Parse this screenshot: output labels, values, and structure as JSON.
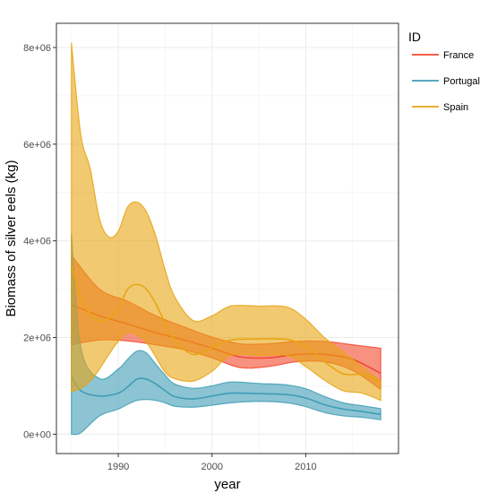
{
  "chart_data": {
    "type": "area",
    "xlabel": "year",
    "ylabel": "Biomass of silver eels (kg)",
    "xlim": [
      1983.4,
      2019.9
    ],
    "ylim": [
      -400000,
      8500000
    ],
    "x_ticks": [
      1990,
      2000,
      2010
    ],
    "x_tick_labels": [
      "1990",
      "2000",
      "2010"
    ],
    "y_ticks": [
      0,
      2000000,
      4000000,
      6000000,
      8000000
    ],
    "y_tick_labels": [
      "0e+00",
      "2e+06",
      "4e+06",
      "6e+06",
      "8e+06"
    ],
    "grid": true,
    "legend": {
      "title": "ID",
      "position": "right",
      "entries": [
        "France",
        "Portugal",
        "Spain"
      ]
    },
    "series": [
      {
        "name": "France",
        "color": "#F2492D",
        "x": [
          1985,
          1988,
          1991,
          1994,
          1997,
          2000,
          2003,
          2006,
          2009,
          2012,
          2015,
          2018
        ],
        "lower": [
          1850000,
          1950000,
          1930000,
          1850000,
          1750000,
          1580000,
          1380000,
          1400000,
          1500000,
          1500000,
          1320000,
          930000
        ],
        "median": [
          2680000,
          2450000,
          2280000,
          2100000,
          1950000,
          1780000,
          1600000,
          1580000,
          1650000,
          1650000,
          1550000,
          1260000
        ],
        "upper": [
          3700000,
          3000000,
          2750000,
          2450000,
          2220000,
          2010000,
          1870000,
          1870000,
          1920000,
          1920000,
          1850000,
          1780000
        ]
      },
      {
        "name": "Portugal",
        "color": "#3F9DB6",
        "x": [
          1985,
          1986,
          1988,
          1990,
          1991,
          1992,
          1993,
          1994,
          1995,
          1996,
          1998,
          2000,
          2002,
          2005,
          2008,
          2010,
          2012,
          2014,
          2016,
          2018
        ],
        "lower": [
          0,
          30000,
          380000,
          520000,
          620000,
          700000,
          720000,
          700000,
          650000,
          580000,
          560000,
          600000,
          650000,
          680000,
          650000,
          570000,
          450000,
          380000,
          350000,
          300000
        ],
        "median": [
          1200000,
          900000,
          790000,
          850000,
          980000,
          1140000,
          1140000,
          1040000,
          900000,
          780000,
          730000,
          790000,
          850000,
          840000,
          820000,
          750000,
          610000,
          520000,
          470000,
          410000
        ],
        "upper": [
          4150000,
          1800000,
          1150000,
          1350000,
          1550000,
          1720000,
          1680000,
          1450000,
          1220000,
          1040000,
          950000,
          1000000,
          1080000,
          1050000,
          1020000,
          940000,
          780000,
          650000,
          590000,
          530000
        ]
      },
      {
        "name": "Spain",
        "color": "#E8A512",
        "x": [
          1985,
          1986,
          1987,
          1988,
          1989,
          1990,
          1991,
          1992,
          1993,
          1994,
          1995,
          1996,
          1998,
          2000,
          2002,
          2005,
          2008,
          2010,
          2012,
          2014,
          2016,
          2018
        ],
        "lower": [
          880000,
          950000,
          1100000,
          1350000,
          1650000,
          1920000,
          2100000,
          2050000,
          1900000,
          1600000,
          1280000,
          1150000,
          1100000,
          1300000,
          1630000,
          1630000,
          1630000,
          1400000,
          1120000,
          900000,
          850000,
          700000
        ],
        "median": [
          3500000,
          2800000,
          2500000,
          2350000,
          2400000,
          2600000,
          3000000,
          3100000,
          3000000,
          2700000,
          2300000,
          1950000,
          1650000,
          1800000,
          1950000,
          1970000,
          1960000,
          1820000,
          1500000,
          1250000,
          1230000,
          1100000
        ],
        "upper": [
          8100000,
          6200000,
          5500000,
          4450000,
          4080000,
          4200000,
          4700000,
          4800000,
          4600000,
          4100000,
          3400000,
          2850000,
          2350000,
          2450000,
          2650000,
          2650000,
          2630000,
          2380000,
          2000000,
          1700000,
          1400000,
          1100000
        ]
      }
    ]
  }
}
